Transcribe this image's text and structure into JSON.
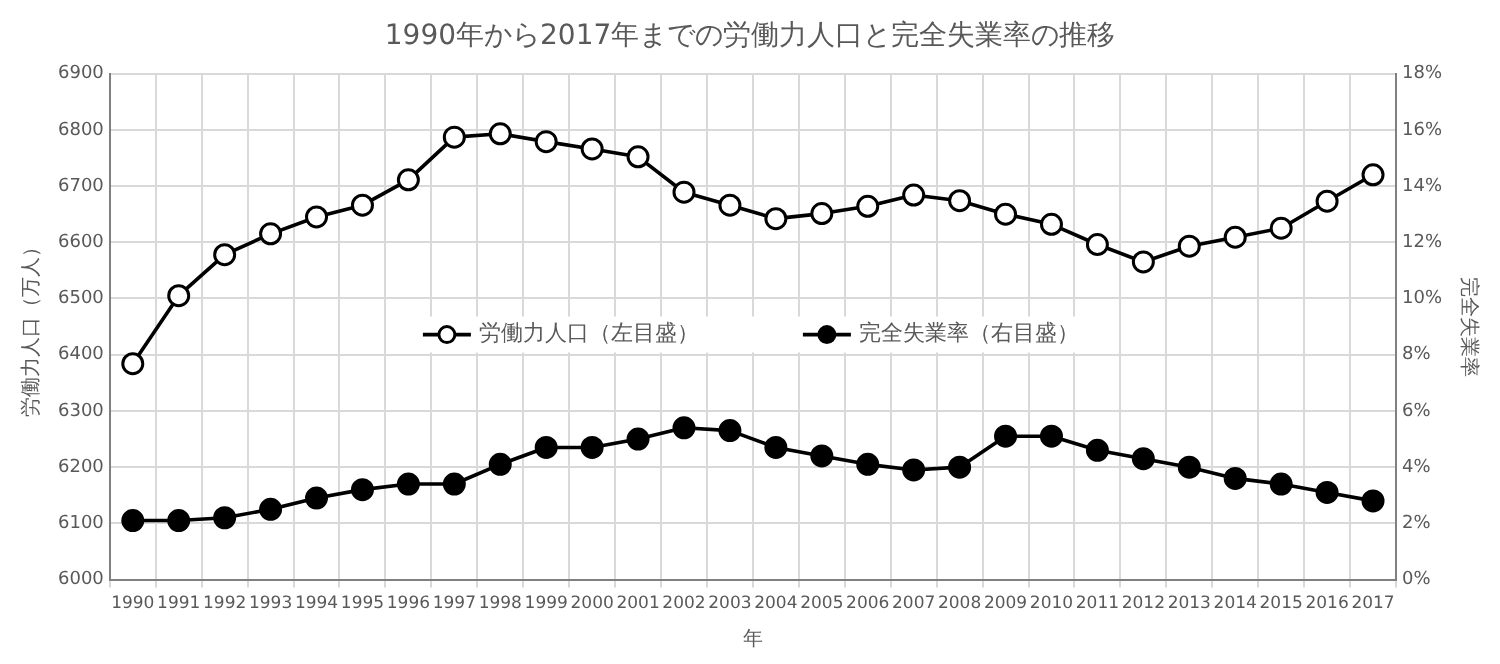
{
  "chart_data": {
    "type": "line",
    "title": "1990年から2017年までの労働力人口と完全失業率の推移",
    "xlabel": "年",
    "ylabel": "労働力人口（万人）",
    "y2label": "完全失業率",
    "categories": [
      "1990",
      "1991",
      "1992",
      "1993",
      "1994",
      "1995",
      "1996",
      "1997",
      "1998",
      "1999",
      "2000",
      "2001",
      "2002",
      "2003",
      "2004",
      "2005",
      "2006",
      "2007",
      "2008",
      "2009",
      "2010",
      "2011",
      "2012",
      "2013",
      "2014",
      "2015",
      "2016",
      "2017"
    ],
    "series": [
      {
        "name": "労働力人口（左目盛）",
        "color": "#000000",
        "values": [
          6384,
          6505,
          6578,
          6615,
          6645,
          6666,
          6711,
          6787,
          6793,
          6779,
          6766,
          6752,
          6689,
          6666,
          6642,
          6651,
          6664,
          6684,
          6674,
          6650,
          6632,
          6596,
          6565,
          6593,
          6609,
          6625,
          6673,
          6720
        ]
      },
      {
        "name": "完全失業率（右目盛）",
        "color": "#000000",
        "axis": "y2",
        "values": [
          2.1,
          2.1,
          2.2,
          2.5,
          2.9,
          3.2,
          3.4,
          3.4,
          4.1,
          4.7,
          4.7,
          5.0,
          5.4,
          5.3,
          4.7,
          4.4,
          4.1,
          3.9,
          4.0,
          5.1,
          5.1,
          4.6,
          4.3,
          4.0,
          3.6,
          3.4,
          3.1,
          2.8
        ]
      }
    ],
    "ylim": [
      6000,
      6900
    ],
    "yticks": [
      6000,
      6100,
      6200,
      6300,
      6400,
      6500,
      6600,
      6700,
      6800,
      6900
    ],
    "y2lim": [
      0,
      18
    ],
    "y2ticks": [
      {
        "value": 0,
        "label": "0%"
      },
      {
        "value": 2,
        "label": "2%"
      },
      {
        "value": 4,
        "label": "4%"
      },
      {
        "value": 6,
        "label": "6%"
      },
      {
        "value": 8,
        "label": "8%"
      },
      {
        "value": 10,
        "label": "10%"
      },
      {
        "value": 12,
        "label": "12%"
      },
      {
        "value": 14,
        "label": "14%"
      },
      {
        "value": 16,
        "label": "16%"
      },
      {
        "value": 18,
        "label": "18%"
      }
    ],
    "grid": true,
    "legend": "center",
    "marker": "circle",
    "line_style": "solid"
  }
}
